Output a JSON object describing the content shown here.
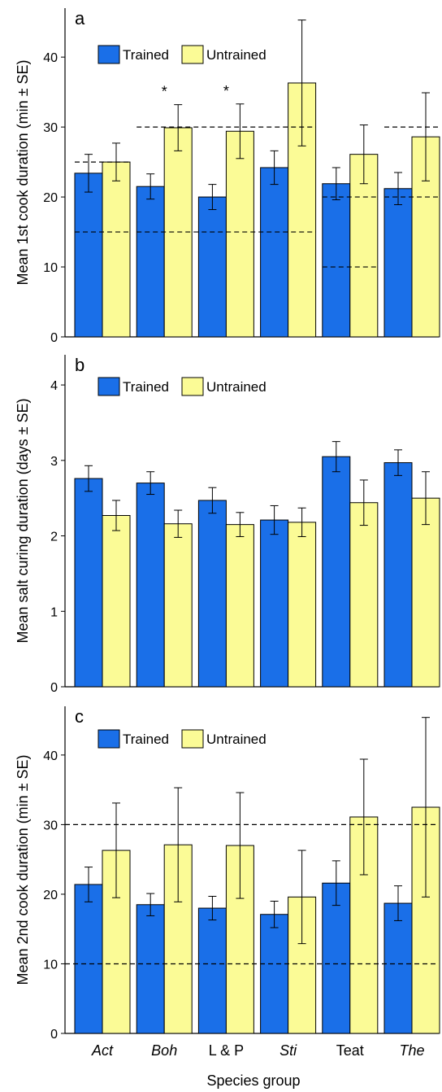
{
  "colors": {
    "trained": "#1a6fe8",
    "untrained": "#fbfb96",
    "axis": "#000000"
  },
  "chart_data": [
    {
      "panel": "a",
      "type": "bar",
      "ylabel": "Mean 1st cook duration (min ± SE)",
      "ylim": [
        0,
        47
      ],
      "yticks": [
        "0",
        "10",
        "20",
        "30",
        "40"
      ],
      "legend": [
        "Trained",
        "Untrained"
      ],
      "categories": [
        "Act",
        "Boh",
        "L & P",
        "Sti",
        "Teat",
        "The"
      ],
      "series": [
        {
          "name": "Trained",
          "values": [
            23.4,
            21.5,
            20.0,
            24.2,
            21.9,
            21.2
          ],
          "se": [
            2.7,
            1.8,
            1.8,
            2.4,
            2.3,
            2.3
          ]
        },
        {
          "name": "Untrained",
          "values": [
            25.0,
            29.9,
            29.4,
            36.3,
            26.1,
            28.6
          ],
          "se": [
            2.7,
            3.3,
            3.9,
            9.0,
            4.2,
            6.3
          ]
        }
      ],
      "significance": [
        "",
        "*",
        "*",
        "",
        "",
        ""
      ],
      "reference_lines": [
        {
          "from": "Act",
          "to": "Act",
          "values": [
            25,
            15
          ]
        },
        {
          "from": "Boh",
          "to": "Sti",
          "values": [
            30,
            15
          ]
        },
        {
          "from": "Teat",
          "to": "Teat",
          "values": [
            20,
            10
          ]
        },
        {
          "from": "The",
          "to": "The",
          "values": [
            30,
            20
          ]
        }
      ]
    },
    {
      "panel": "b",
      "type": "bar",
      "ylabel": "Mean salt curing duration (days ± SE)",
      "ylim": [
        0,
        4.4
      ],
      "yticks": [
        "0",
        "1",
        "2",
        "3",
        "4"
      ],
      "legend": [
        "Trained",
        "Untrained"
      ],
      "categories": [
        "Act",
        "Boh",
        "L & P",
        "Sti",
        "Teat",
        "The"
      ],
      "series": [
        {
          "name": "Trained",
          "values": [
            2.76,
            2.7,
            2.47,
            2.21,
            3.05,
            2.97
          ],
          "se": [
            0.17,
            0.15,
            0.17,
            0.19,
            0.2,
            0.17
          ]
        },
        {
          "name": "Untrained",
          "values": [
            2.27,
            2.16,
            2.15,
            2.18,
            2.44,
            2.5
          ],
          "se": [
            0.2,
            0.18,
            0.16,
            0.19,
            0.3,
            0.35
          ]
        }
      ],
      "significance": [
        "",
        "",
        "",
        "",
        "",
        ""
      ],
      "reference_lines": []
    },
    {
      "panel": "c",
      "type": "bar",
      "ylabel": "Mean 2nd cook duration (min ± SE)",
      "ylim": [
        0,
        47
      ],
      "yticks": [
        "0",
        "10",
        "20",
        "30",
        "40"
      ],
      "legend": [
        "Trained",
        "Untrained"
      ],
      "categories": [
        "Act",
        "Boh",
        "L & P",
        "Sti",
        "Teat",
        "The"
      ],
      "series": [
        {
          "name": "Trained",
          "values": [
            21.4,
            18.5,
            18.0,
            17.1,
            21.6,
            18.7
          ],
          "se": [
            2.5,
            1.6,
            1.7,
            1.9,
            3.2,
            2.5
          ]
        },
        {
          "name": "Untrained",
          "values": [
            26.3,
            27.1,
            27.0,
            19.6,
            31.1,
            32.5
          ],
          "se": [
            6.8,
            8.2,
            7.6,
            6.7,
            8.3,
            12.9
          ]
        }
      ],
      "significance": [
        "",
        "",
        "",
        "",
        "",
        ""
      ],
      "reference_lines": [
        {
          "from": "Act",
          "to": "The",
          "values": [
            30,
            10
          ]
        }
      ]
    }
  ],
  "xaxis": {
    "title": "Species group",
    "italic": [
      true,
      true,
      false,
      true,
      false,
      true
    ]
  }
}
